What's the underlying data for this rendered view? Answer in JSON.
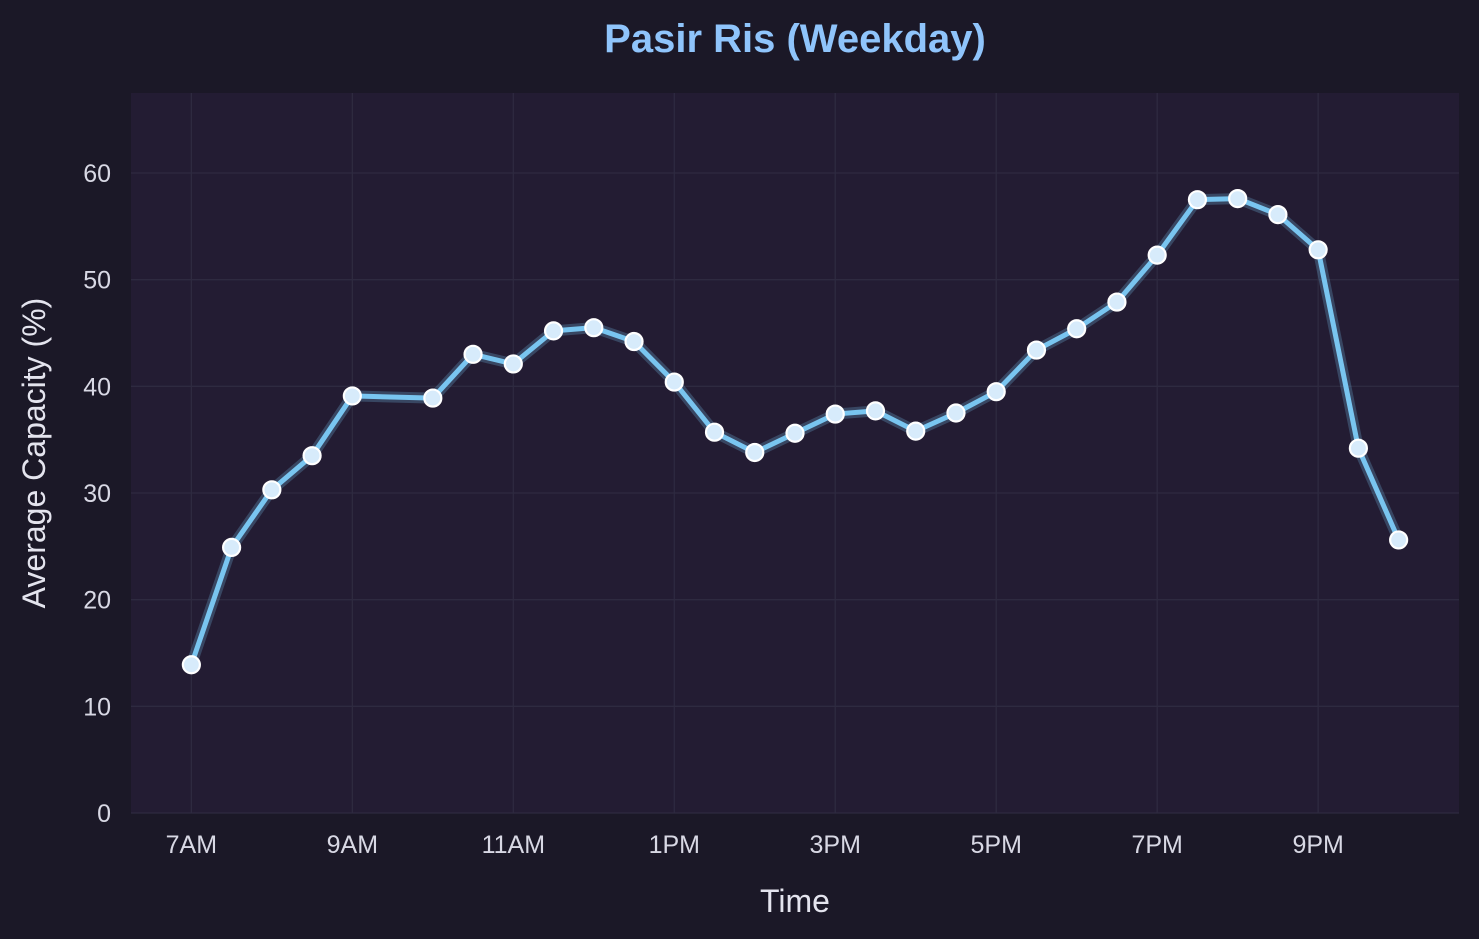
{
  "chart_data": {
    "type": "line",
    "title": "Pasir Ris (Weekday)",
    "xlabel": "Time",
    "ylabel": "Average Capacity (%)",
    "x_tick_labels": [
      "7AM",
      "9AM",
      "11AM",
      "1PM",
      "3PM",
      "5PM",
      "7PM",
      "9PM"
    ],
    "x_tick_hours": [
      7,
      9,
      11,
      13,
      15,
      17,
      19,
      21
    ],
    "y_ticks": [
      0,
      10,
      20,
      30,
      40,
      50,
      60
    ],
    "xlim": [
      6.25,
      22.75
    ],
    "ylim": [
      0,
      67.5
    ],
    "grid": true,
    "series": [
      {
        "x": [
          7,
          7.5,
          8,
          8.5,
          9,
          10,
          10.5,
          11,
          11.5,
          12,
          12.5,
          13,
          13.5,
          14,
          14.5,
          15,
          15.5,
          16,
          16.5,
          17,
          17.5,
          18,
          18.5,
          19,
          19.5,
          20,
          20.5,
          21,
          21.5,
          22
        ],
        "values": [
          13.9,
          24.9,
          30.3,
          33.5,
          39.1,
          38.9,
          43.0,
          42.1,
          45.2,
          45.5,
          44.2,
          40.4,
          35.7,
          33.8,
          35.6,
          37.4,
          37.7,
          35.8,
          37.5,
          39.5,
          43.4,
          45.4,
          47.9,
          52.3,
          57.5,
          57.6,
          56.1,
          52.8,
          34.2,
          25.6
        ]
      }
    ],
    "colors": {
      "background": "#1b1827",
      "plot_background": "#231c33",
      "line": "#79c5f0",
      "marker_fill": "#d7ebfb",
      "marker_edge": "#ffffff",
      "title": "#8fc4fb",
      "grid": "#2e2a40"
    }
  }
}
